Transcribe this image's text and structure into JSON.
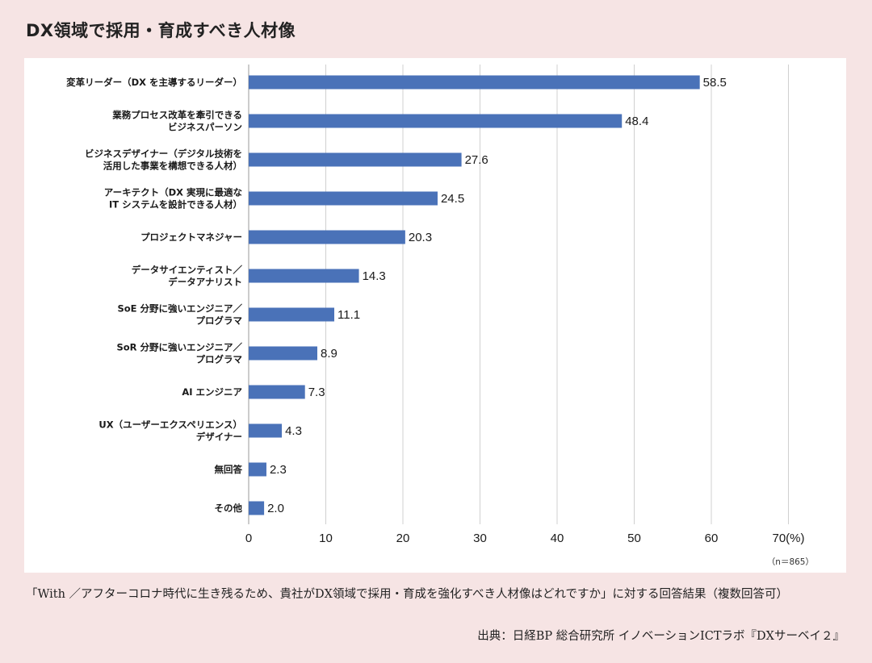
{
  "title": "DX領域で採用・育成すべき人材像",
  "footnote": "「With ／アフターコロナ時代に生き残るため、貴社がDX領域で採用・育成を強化すべき人材像はどれですか」に対する回答結果（複数回答可）",
  "source": "出典：日経BP 総合研究所 イノベーションICTラボ『DXサーベイ２』",
  "chart_data": {
    "type": "bar",
    "orientation": "horizontal",
    "categories": [
      [
        "変革リーダー（DX を主導するリーダー）"
      ],
      [
        "業務プロセス改革を牽引できる",
        "ビジネスパーソン"
      ],
      [
        "ビジネスデザイナー（デジタル技術を",
        "活用した事業を構想できる人材）"
      ],
      [
        "アーキテクト（DX 実現に最適な",
        "IT システムを設計できる人材）"
      ],
      [
        "プロジェクトマネジャー"
      ],
      [
        "データサイエンティスト／",
        "データアナリスト"
      ],
      [
        "SoE 分野に強いエンジニア／",
        "プログラマ"
      ],
      [
        "SoR 分野に強いエンジニア／",
        "プログラマ"
      ],
      [
        "AI エンジニア"
      ],
      [
        "UX（ユーザーエクスペリエンス）",
        "デザイナー"
      ],
      [
        "無回答"
      ],
      [
        "その他"
      ]
    ],
    "values": [
      58.5,
      48.4,
      27.6,
      24.5,
      20.3,
      14.3,
      11.1,
      8.9,
      7.3,
      4.3,
      2.3,
      2.0
    ],
    "value_labels": [
      "58.5",
      "48.4",
      "27.6",
      "24.5",
      "20.3",
      "14.3",
      "11.1",
      "8.9",
      "7.3",
      "4.3",
      "2.3",
      "2.0"
    ],
    "xlim": [
      0,
      70
    ],
    "xticks": [
      "0",
      "10",
      "20",
      "30",
      "40",
      "50",
      "60",
      "70(%)"
    ],
    "n_label": "（n＝865）",
    "grid": true,
    "bar_color": "#4a72b8"
  }
}
